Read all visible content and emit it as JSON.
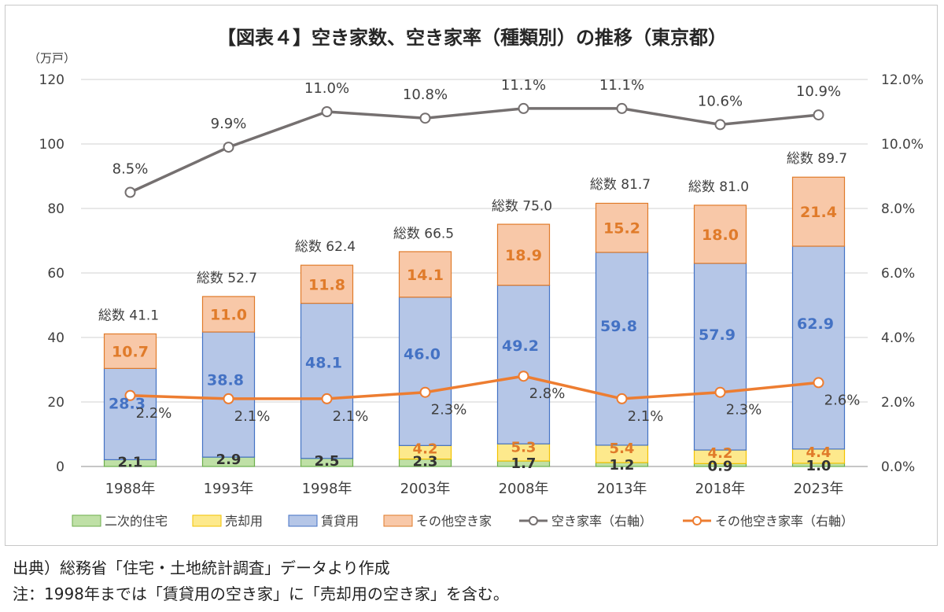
{
  "chart_data": {
    "type": "bar",
    "title": "【図表４】空き家数、空き家率（種類別）の推移（東京都）",
    "y_unit": "（万戸）",
    "categories": [
      "1988年",
      "1993年",
      "1998年",
      "2003年",
      "2008年",
      "2013年",
      "2018年",
      "2023年"
    ],
    "ylim": [
      0,
      120
    ],
    "y_ticks": [
      "0",
      "20",
      "40",
      "60",
      "80",
      "100",
      "120"
    ],
    "y2lim": [
      0,
      12
    ],
    "y2_ticks": [
      "0.0%",
      "2.0%",
      "4.0%",
      "6.0%",
      "8.0%",
      "10.0%",
      "12.0%"
    ],
    "stacked": true,
    "grid": true,
    "legend_position": "bottom",
    "series": [
      {
        "name": "二次的住宅",
        "kind": "bar",
        "color": "#bfe0a6",
        "edge": "#6cae4c",
        "label_color": "#333333",
        "values": [
          2.1,
          2.9,
          2.5,
          2.3,
          1.7,
          1.2,
          0.9,
          1.0
        ],
        "labels": [
          "2.1",
          "2.9",
          "2.5",
          "2.3",
          "1.7",
          "1.2",
          "0.9",
          "1.0"
        ]
      },
      {
        "name": "売却用",
        "kind": "bar",
        "color": "#fde98c",
        "edge": "#f2c200",
        "label_color": "#e07b2a",
        "values": [
          0,
          0,
          0,
          4.2,
          5.3,
          5.4,
          4.2,
          4.4
        ],
        "labels": [
          "",
          "",
          "",
          "4.2",
          "5.3",
          "5.4",
          "4.2",
          "4.4"
        ]
      },
      {
        "name": "賃貸用",
        "kind": "bar",
        "color": "#b5c6e7",
        "edge": "#4472c4",
        "label_color": "#4472c4",
        "values": [
          28.3,
          38.8,
          48.1,
          46.0,
          49.2,
          59.8,
          57.9,
          62.9
        ],
        "labels": [
          "28.3",
          "38.8",
          "48.1",
          "46.0",
          "49.2",
          "59.8",
          "57.9",
          "62.9"
        ]
      },
      {
        "name": "その他空き家",
        "kind": "bar",
        "color": "#f8c8a8",
        "edge": "#e07b2a",
        "label_color": "#e07b2a",
        "values": [
          10.7,
          11.0,
          11.8,
          14.1,
          18.9,
          15.2,
          18.0,
          21.4
        ],
        "labels": [
          "10.7",
          "11.0",
          "11.8",
          "14.1",
          "18.9",
          "15.2",
          "18.0",
          "21.4"
        ]
      },
      {
        "name": "空き家率（右軸）",
        "kind": "line",
        "axis": "right",
        "color": "#757070",
        "values": [
          8.5,
          9.9,
          11.0,
          10.8,
          11.1,
          11.1,
          10.6,
          10.9
        ],
        "labels": [
          "8.5%",
          "9.9%",
          "11.0%",
          "10.8%",
          "11.1%",
          "11.1%",
          "10.6%",
          "10.9%"
        ]
      },
      {
        "name": "その他空き家率（右軸）",
        "kind": "line",
        "axis": "right",
        "color": "#ed7d31",
        "values": [
          2.2,
          2.1,
          2.1,
          2.3,
          2.8,
          2.1,
          2.3,
          2.6
        ],
        "labels": [
          "2.2%",
          "2.1%",
          "2.1%",
          "2.3%",
          "2.8%",
          "2.1%",
          "2.3%",
          "2.6%"
        ]
      }
    ],
    "totals": [
      41.1,
      52.7,
      62.4,
      66.5,
      75.0,
      81.7,
      81.0,
      89.7
    ],
    "total_labels": [
      "総数 41.1",
      "総数 52.7",
      "総数 62.4",
      "総数 66.5",
      "総数 75.0",
      "総数 81.7",
      "総数 81.0",
      "総数 89.7"
    ]
  },
  "footer": {
    "source": "出典）総務省「住宅・土地統計調査」データより作成",
    "note": "注：1998年までは「賃貸用の空き家」に「売却用の空き家」を含む。"
  }
}
